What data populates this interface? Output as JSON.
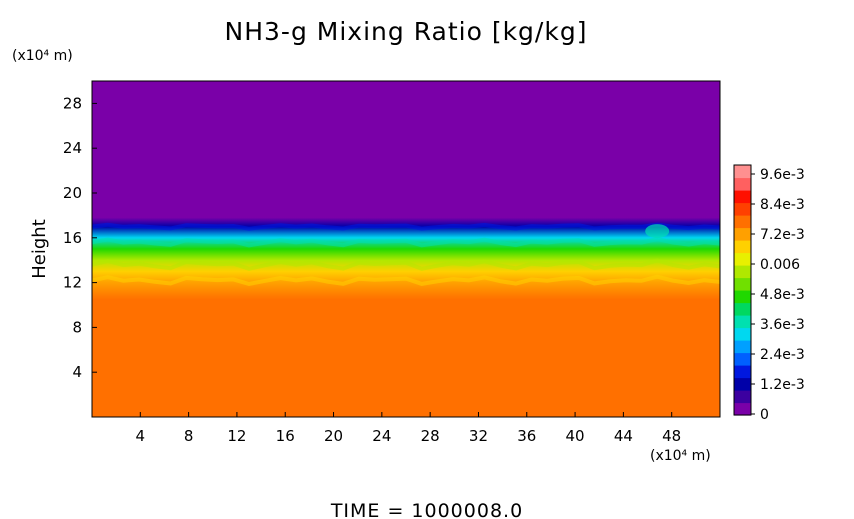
{
  "chart_data": {
    "type": "heatmap",
    "title": "NH3-g Mixing Ratio [kg/kg]",
    "ylabel": "Height",
    "xunit": "(x10⁴ m)",
    "yunit": "(x10⁴ m)",
    "xlim": [
      0,
      52
    ],
    "ylim": [
      0,
      30
    ],
    "xticks": [
      "4",
      "8",
      "12",
      "16",
      "20",
      "24",
      "28",
      "32",
      "36",
      "40",
      "44",
      "48"
    ],
    "yticks": [
      "4",
      "8",
      "12",
      "16",
      "20",
      "24",
      "28"
    ],
    "colorbar": {
      "labels": [
        "0",
        "1.2e-3",
        "2.4e-3",
        "3.6e-3",
        "4.8e-3",
        "0.006",
        "7.2e-3",
        "8.4e-3",
        "9.6e-3"
      ],
      "min": 0,
      "max": 0.0102,
      "colors": [
        "#7a00a8",
        "#3c00a0",
        "#0000a8",
        "#0018e0",
        "#0060ff",
        "#00a0ff",
        "#00d8f0",
        "#00e0b0",
        "#00d860",
        "#20d800",
        "#70e000",
        "#b0e800",
        "#e8f000",
        "#ffd000",
        "#ffa000",
        "#ff7000",
        "#ff4000",
        "#ff1000",
        "#ff6060",
        "#ff9090"
      ]
    },
    "profile": [
      {
        "height": 0,
        "value": 0.0079
      },
      {
        "height": 10.5,
        "value": 0.0079
      },
      {
        "height": 12,
        "value": 0.0076
      },
      {
        "height": 13,
        "value": 0.007
      },
      {
        "height": 14,
        "value": 0.0058
      },
      {
        "height": 15,
        "value": 0.0046
      },
      {
        "height": 16,
        "value": 0.0032
      },
      {
        "height": 17,
        "value": 0.0015
      },
      {
        "height": 17.8,
        "value": 0.0002
      },
      {
        "height": 30,
        "value": 0
      }
    ]
  },
  "footer": {
    "time_label": "TIME  =  1000008.0"
  }
}
